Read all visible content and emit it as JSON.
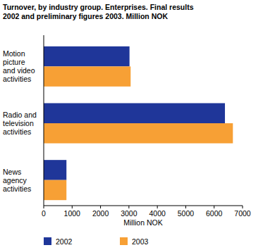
{
  "chart_data": {
    "type": "bar",
    "orientation": "horizontal",
    "title": "Turnover, by industry group. Enterprises. Final results 2002 and preliminary figures 2003. Million NOK",
    "x_label": "Million NOK",
    "categories": [
      "Motion picture and video activities",
      "Radio and television activities",
      "News agency activities"
    ],
    "series": [
      {
        "name": "2002",
        "color": "#1f3699",
        "values": [
          3020,
          6380,
          800
        ]
      },
      {
        "name": "2003",
        "color": "#f7a035",
        "values": [
          3060,
          6660,
          800
        ]
      }
    ],
    "xlim": [
      0,
      7000
    ],
    "xticks": [
      0,
      1000,
      2000,
      3000,
      4000,
      5000,
      6000,
      7000
    ],
    "grid": false,
    "legend": "bottom"
  }
}
